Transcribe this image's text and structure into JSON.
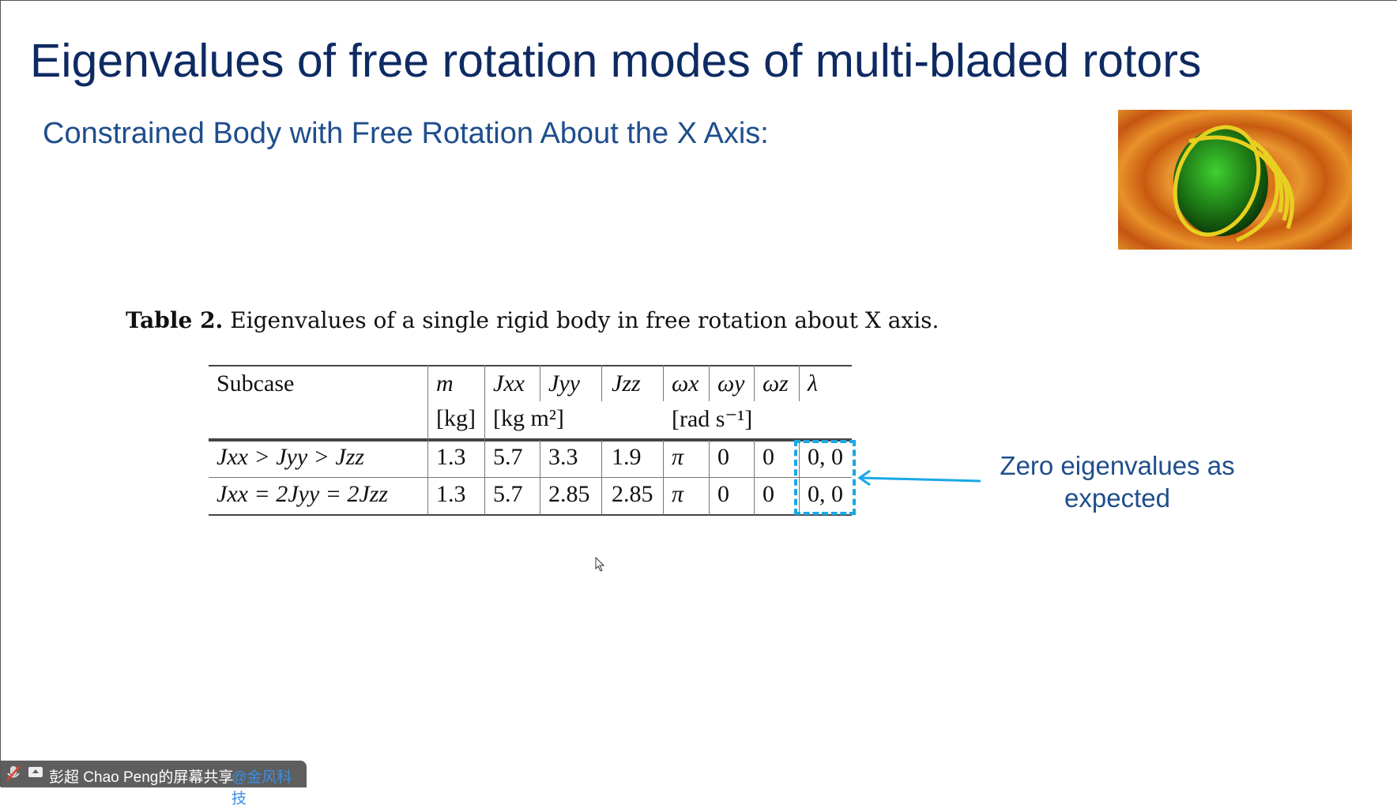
{
  "slide": {
    "title": "Eigenvalues of free rotation modes of multi-bladed rotors",
    "subtitle": "Constrained Body with Free Rotation About the X Axis:",
    "caption_label": "Table 2.",
    "caption_text": "Eigenvalues of a single rigid body in free rotation about X axis.",
    "annotation": "Zero eigenvalues as expected",
    "accent_color": "#1aa7e6"
  },
  "table": {
    "headers": [
      "Subcase",
      "m",
      "Jxx",
      "Jyy",
      "Jzz",
      "ωx",
      "ωy",
      "ωz",
      "λ"
    ],
    "units": {
      "m": "[kg]",
      "J": "[kg m²]",
      "omega": "[rad s⁻¹]"
    },
    "rows": [
      [
        "Jxx > Jyy > Jzz",
        "1.3",
        "5.7",
        "3.3",
        "1.9",
        "π",
        "0",
        "0",
        "0, 0"
      ],
      [
        "Jxx = 2Jyy = 2Jzz",
        "1.3",
        "5.7",
        "2.85",
        "2.85",
        "π",
        "0",
        "0",
        "0, 0"
      ]
    ]
  },
  "share_bar": {
    "text": "彭超 Chao Peng的屏幕共享",
    "watermark": "@金风科技"
  }
}
